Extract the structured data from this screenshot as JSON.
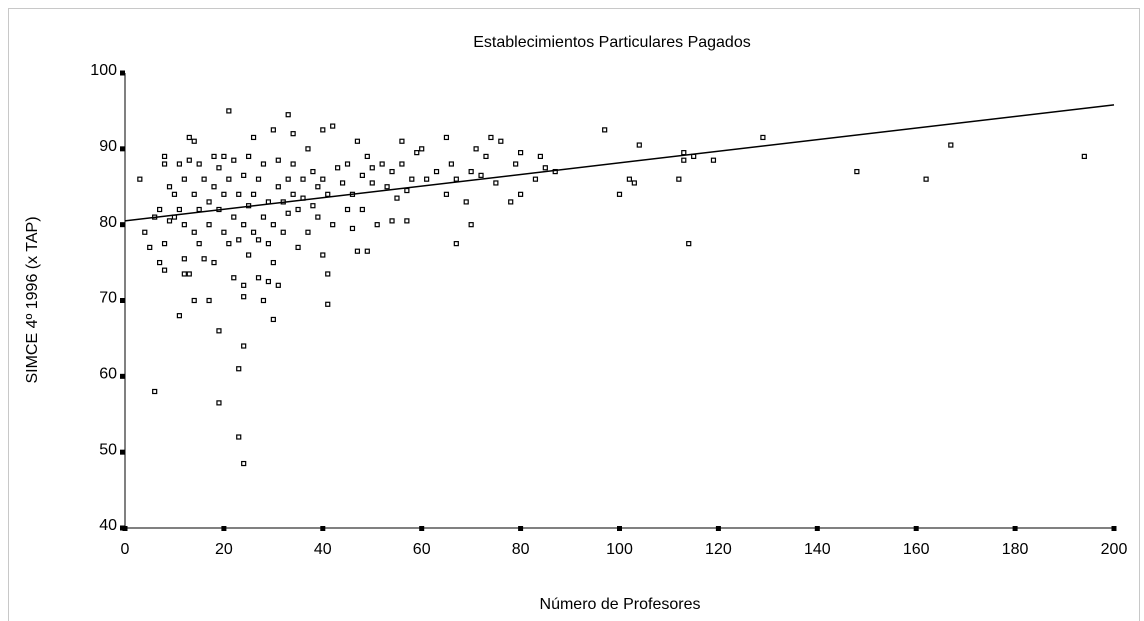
{
  "chart_data": {
    "type": "scatter",
    "title": "Establecimientos Particulares Pagados",
    "x_label": "Número de Profesores",
    "y_label": "SIMCE 4º 1996 (x TAP)",
    "color": "#000000",
    "x": [
      3,
      4,
      5,
      6,
      6,
      7,
      7,
      8,
      8,
      8,
      8,
      9,
      9,
      10,
      10,
      11,
      11,
      11,
      12,
      12,
      12,
      12,
      13,
      13,
      13,
      14,
      14,
      14,
      14,
      15,
      15,
      15,
      16,
      16,
      17,
      17,
      17,
      18,
      18,
      18,
      19,
      19,
      19,
      19,
      20,
      20,
      20,
      21,
      21,
      21,
      22,
      22,
      22,
      23,
      23,
      23,
      23,
      24,
      24,
      24,
      24,
      24,
      24,
      25,
      25,
      25,
      26,
      26,
      26,
      27,
      27,
      27,
      28,
      28,
      28,
      29,
      29,
      29,
      30,
      30,
      30,
      30,
      31,
      31,
      31,
      32,
      32,
      33,
      33,
      33,
      34,
      34,
      34,
      35,
      35,
      36,
      36,
      37,
      37,
      38,
      38,
      39,
      39,
      40,
      40,
      40,
      41,
      41,
      41,
      42,
      42,
      43,
      44,
      45,
      45,
      46,
      46,
      47,
      47,
      48,
      48,
      49,
      49,
      50,
      50,
      51,
      52,
      53,
      54,
      54,
      55,
      56,
      56,
      57,
      57,
      58,
      59,
      60,
      61,
      63,
      65,
      65,
      66,
      67,
      67,
      69,
      70,
      70,
      71,
      72,
      73,
      74,
      75,
      76,
      78,
      79,
      80,
      80,
      83,
      84,
      85,
      87,
      97,
      100,
      102,
      103,
      104,
      112,
      113,
      113,
      114,
      115,
      119,
      129,
      148,
      162,
      167,
      194
    ],
    "values": [
      86,
      79,
      77,
      58,
      81,
      75,
      82,
      74,
      77.5,
      88,
      89,
      80.5,
      85,
      84,
      81,
      68,
      82,
      88,
      73.5,
      75.5,
      80,
      86,
      88.5,
      73.5,
      91.5,
      91,
      70,
      79,
      84,
      77.5,
      82,
      88,
      86,
      75.5,
      70,
      80,
      83,
      89,
      75,
      85,
      66,
      56.5,
      82,
      87.5,
      79,
      84,
      89,
      95,
      77.5,
      86,
      73,
      81,
      88.5,
      61,
      52,
      78,
      84,
      64,
      48.5,
      70.5,
      72,
      80,
      86.5,
      89,
      76,
      82.5,
      91.5,
      79,
      84,
      73,
      78,
      86,
      70,
      81,
      88,
      72.5,
      77.5,
      83,
      67.5,
      75,
      80,
      92.5,
      85,
      88.5,
      72,
      79,
      83,
      94.5,
      86,
      81.5,
      84,
      88,
      92,
      77,
      82,
      83.5,
      86,
      79,
      90,
      82.5,
      87,
      85,
      81,
      92.5,
      76,
      86,
      69.5,
      73.5,
      84,
      93,
      80,
      87.5,
      85.5,
      82,
      88,
      79.5,
      84,
      91,
      76.5,
      86.5,
      82,
      89,
      76.5,
      85.5,
      87.5,
      80,
      88,
      85,
      80.5,
      87,
      83.5,
      88,
      91,
      80.5,
      84.5,
      86,
      89.5,
      90,
      86,
      87,
      84,
      91.5,
      88,
      77.5,
      86,
      83,
      80,
      87,
      90,
      86.5,
      89,
      91.5,
      85.5,
      91,
      83,
      88,
      84,
      89.5,
      86,
      89,
      87.5,
      87,
      92.5,
      84,
      86,
      85.5,
      90.5,
      86,
      89.5,
      88.5,
      77.5,
      89,
      88.5,
      91.5,
      87,
      86,
      90.5,
      89
    ],
    "fit_line": {
      "x": [
        0,
        200
      ],
      "y": [
        80.5,
        95.8
      ]
    },
    "xlim": [
      0,
      200
    ],
    "xticks": [
      0,
      20,
      40,
      60,
      80,
      100,
      120,
      140,
      160,
      180,
      200
    ],
    "ylim": [
      40,
      100
    ],
    "yticks": [
      40,
      50,
      60,
      70,
      80,
      90,
      100
    ]
  }
}
